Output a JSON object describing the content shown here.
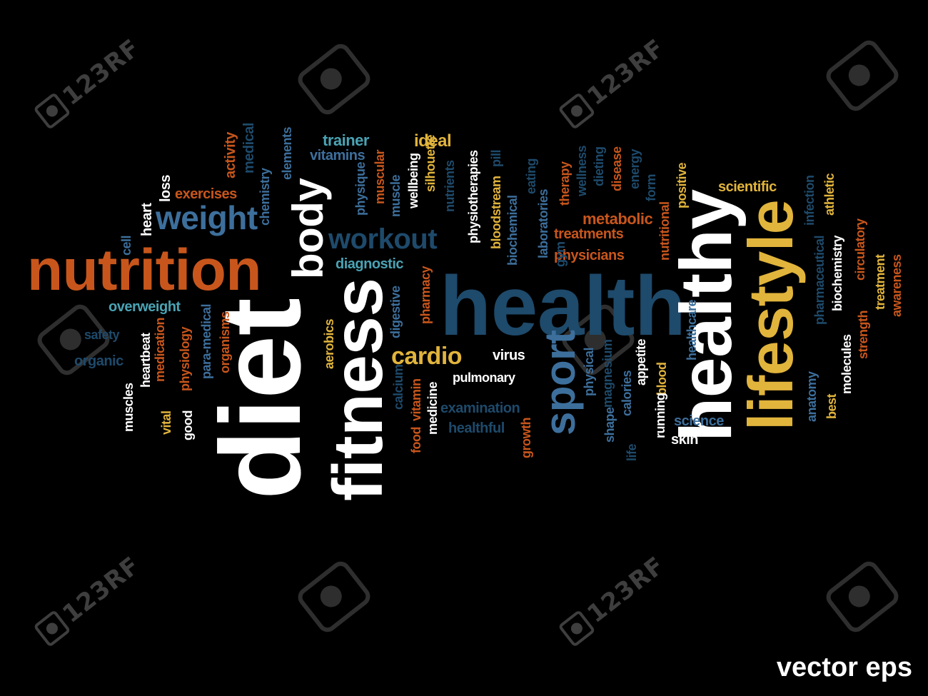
{
  "caption": "vector eps",
  "watermark": "123RF",
  "colors": {
    "white": "#ffffff",
    "orange": "#c8561c",
    "gold": "#e1b43c",
    "steel": "#3d6f9c",
    "navy": "#1e4a6b",
    "teal": "#4aa3b4",
    "grey": "#a8a8a8"
  },
  "words": [
    {
      "text": "nutrition",
      "color": "orange"
    },
    {
      "text": "diet",
      "color": "white"
    },
    {
      "text": "fitness",
      "color": "white"
    },
    {
      "text": "health",
      "color": "navy"
    },
    {
      "text": "healthy",
      "color": "white"
    },
    {
      "text": "lifestyle",
      "color": "gold"
    },
    {
      "text": "sport",
      "color": "steel"
    },
    {
      "text": "body",
      "color": "white"
    },
    {
      "text": "weight",
      "color": "steel"
    },
    {
      "text": "workout",
      "color": "navy"
    },
    {
      "text": "cardio",
      "color": "gold"
    },
    {
      "text": "exercises",
      "color": "orange"
    },
    {
      "text": "trainer",
      "color": "teal"
    },
    {
      "text": "vitamins",
      "color": "steel"
    },
    {
      "text": "ideal",
      "color": "gold"
    },
    {
      "text": "scientific",
      "color": "gold"
    },
    {
      "text": "metabolic",
      "color": "orange"
    },
    {
      "text": "treatments",
      "color": "orange"
    },
    {
      "text": "physicians",
      "color": "orange"
    },
    {
      "text": "diagnostic",
      "color": "teal"
    },
    {
      "text": "overweight",
      "color": "teal"
    },
    {
      "text": "safety",
      "color": "navy"
    },
    {
      "text": "organic",
      "color": "navy"
    },
    {
      "text": "pulmonary",
      "color": "white"
    },
    {
      "text": "virus",
      "color": "white"
    },
    {
      "text": "examination",
      "color": "navy"
    },
    {
      "text": "healthful",
      "color": "navy"
    },
    {
      "text": "science",
      "color": "steel"
    },
    {
      "text": "skin",
      "color": "white"
    },
    {
      "text": "loss",
      "color": "white"
    },
    {
      "text": "heart",
      "color": "white"
    },
    {
      "text": "cell",
      "color": "steel"
    },
    {
      "text": "chemistry",
      "color": "steel"
    },
    {
      "text": "elements",
      "color": "steel"
    },
    {
      "text": "activity",
      "color": "orange"
    },
    {
      "text": "medical",
      "color": "navy"
    },
    {
      "text": "physique",
      "color": "steel"
    },
    {
      "text": "muscular",
      "color": "orange"
    },
    {
      "text": "muscle",
      "color": "steel"
    },
    {
      "text": "wellbeing",
      "color": "white"
    },
    {
      "text": "silhouette",
      "color": "gold"
    },
    {
      "text": "nutrients",
      "color": "navy"
    },
    {
      "text": "physiotherapies",
      "color": "white"
    },
    {
      "text": "pill",
      "color": "navy"
    },
    {
      "text": "bloodstream",
      "color": "gold"
    },
    {
      "text": "eating",
      "color": "navy"
    },
    {
      "text": "biochemical",
      "color": "steel"
    },
    {
      "text": "laboratories",
      "color": "steel"
    },
    {
      "text": "therapy",
      "color": "orange"
    },
    {
      "text": "wellness",
      "color": "navy"
    },
    {
      "text": "dieting",
      "color": "navy"
    },
    {
      "text": "disease",
      "color": "orange"
    },
    {
      "text": "energy",
      "color": "navy"
    },
    {
      "text": "form",
      "color": "navy"
    },
    {
      "text": "positive",
      "color": "gold"
    },
    {
      "text": "nutritional",
      "color": "orange"
    },
    {
      "text": "gym",
      "color": "navy"
    },
    {
      "text": "infection",
      "color": "navy"
    },
    {
      "text": "athletic",
      "color": "gold"
    },
    {
      "text": "pharmaceutical",
      "color": "navy"
    },
    {
      "text": "biochemistry",
      "color": "white"
    },
    {
      "text": "circulatory",
      "color": "orange"
    },
    {
      "text": "treatment",
      "color": "gold"
    },
    {
      "text": "awareness",
      "color": "orange"
    },
    {
      "text": "strength",
      "color": "orange"
    },
    {
      "text": "molecules",
      "color": "white"
    },
    {
      "text": "anatomy",
      "color": "steel"
    },
    {
      "text": "best",
      "color": "gold"
    },
    {
      "text": "healthcare",
      "color": "steel"
    },
    {
      "text": "blood",
      "color": "gold"
    },
    {
      "text": "running",
      "color": "white"
    },
    {
      "text": "appetite",
      "color": "white"
    },
    {
      "text": "calories",
      "color": "steel"
    },
    {
      "text": "magnesium",
      "color": "navy"
    },
    {
      "text": "shape",
      "color": "steel"
    },
    {
      "text": "life",
      "color": "navy"
    },
    {
      "text": "physical",
      "color": "steel"
    },
    {
      "text": "growth",
      "color": "orange"
    },
    {
      "text": "medicine",
      "color": "white"
    },
    {
      "text": "vitamin",
      "color": "orange"
    },
    {
      "text": "food",
      "color": "orange"
    },
    {
      "text": "calcium",
      "color": "navy"
    },
    {
      "text": "digestive",
      "color": "steel"
    },
    {
      "text": "pharmacy",
      "color": "orange"
    },
    {
      "text": "aerobics",
      "color": "gold"
    },
    {
      "text": "organisms",
      "color": "orange"
    },
    {
      "text": "para-medical",
      "color": "steel"
    },
    {
      "text": "physiology",
      "color": "orange"
    },
    {
      "text": "medication",
      "color": "orange"
    },
    {
      "text": "vital",
      "color": "gold"
    },
    {
      "text": "good",
      "color": "white"
    },
    {
      "text": "heartbeat",
      "color": "white"
    },
    {
      "text": "muscles",
      "color": "white"
    }
  ]
}
